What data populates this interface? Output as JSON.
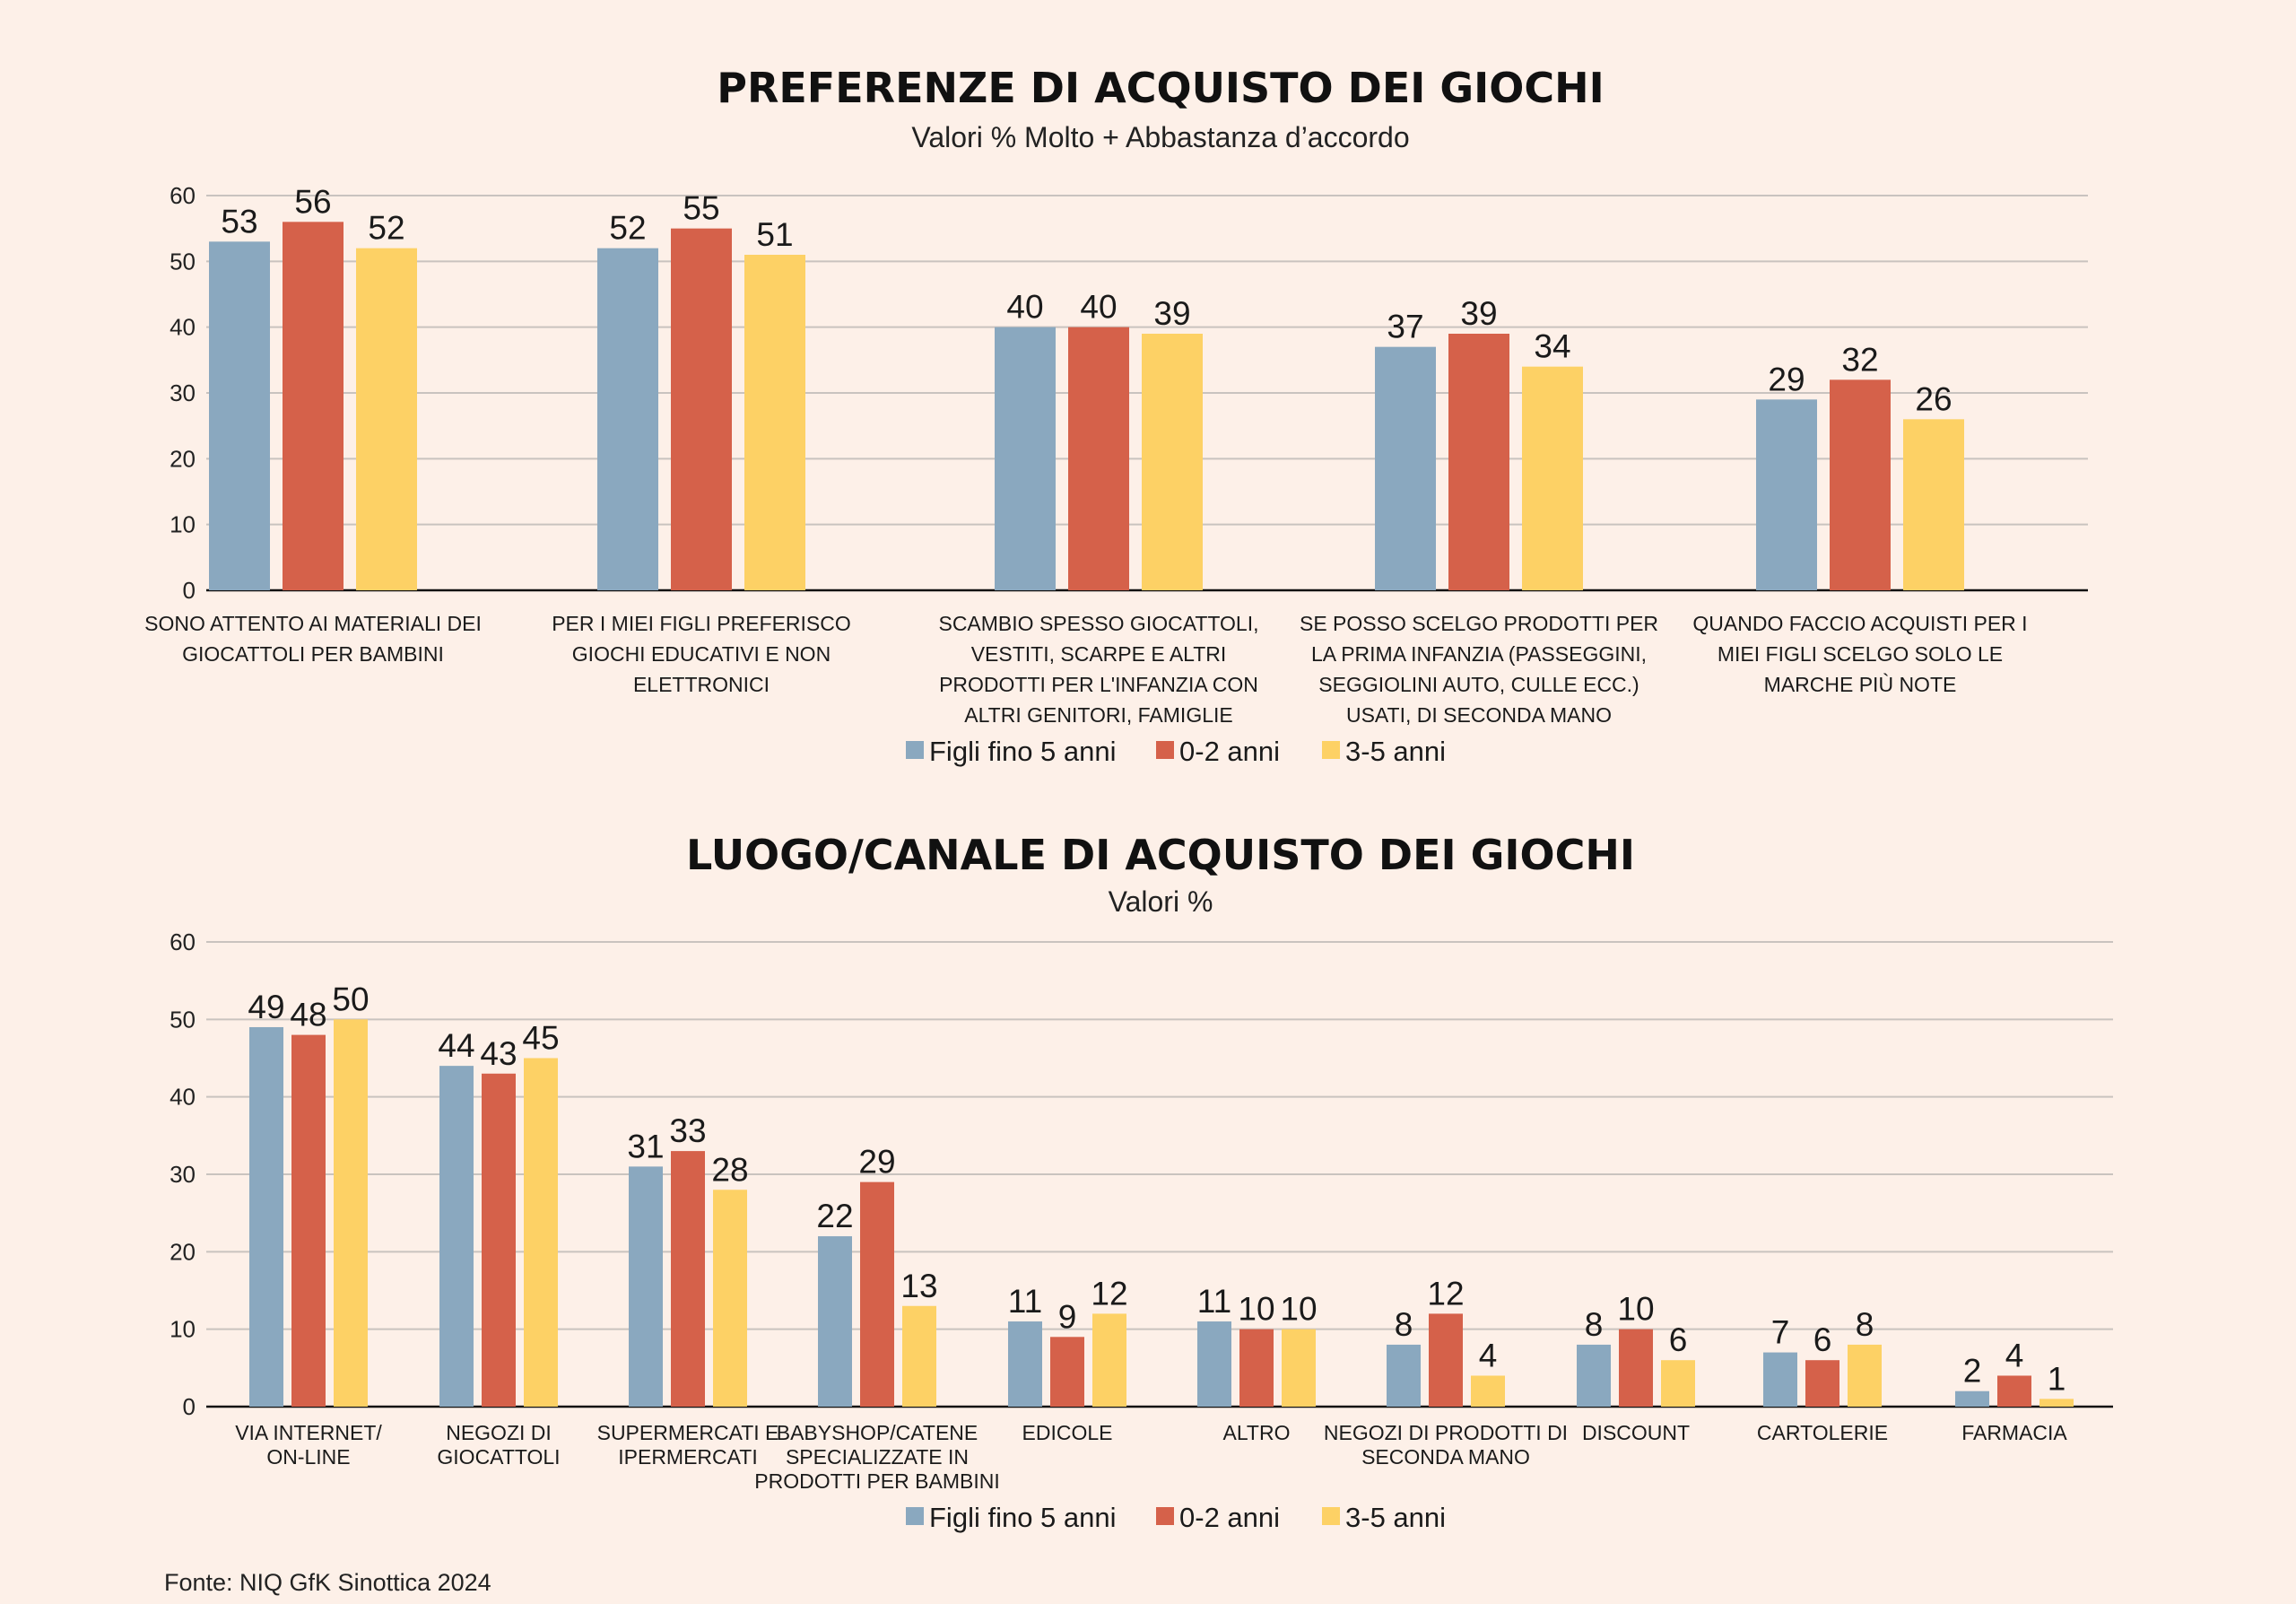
{
  "colors": {
    "background": "#fdf0e8",
    "figli": "#8aa8bf",
    "zero_two": "#d5614a",
    "three_five": "#fdd165",
    "grid": "#c9c3bf"
  },
  "legend": [
    "Figli fino 5 anni",
    "0-2 anni",
    "3-5 anni"
  ],
  "source": "Fonte: NIQ GfK Sinottica 2024",
  "chart_data": [
    {
      "type": "bar",
      "title": "PREFERENZE DI ACQUISTO DEI GIOCHI",
      "subtitle": "Valori % Molto + Abbastanza d’accordo",
      "ylim": [
        0,
        60
      ],
      "yticks": [
        0,
        10,
        20,
        30,
        40,
        50,
        60
      ],
      "grid": true,
      "legend_position": "bottom",
      "categories": [
        [
          "SONO ATTENTO AI MATERIALI DEI",
          "GIOCATTOLI PER BAMBINI"
        ],
        [
          "PER I MIEI FIGLI PREFERISCO",
          "GIOCHI EDUCATIVI E NON",
          "ELETTRONICI"
        ],
        [
          "SCAMBIO SPESSO GIOCATTOLI,",
          "VESTITI, SCARPE E ALTRI",
          "PRODOTTI PER L'INFANZIA CON",
          "ALTRI GENITORI, FAMIGLIE"
        ],
        [
          "SE POSSO SCELGO PRODOTTI PER",
          "LA PRIMA INFANZIA (PASSEGGINI,",
          "SEGGIOLINI AUTO, CULLE ECC.)",
          "USATI, DI SECONDA MANO"
        ],
        [
          "QUANDO FACCIO ACQUISTI PER I",
          "MIEI FIGLI SCELGO SOLO LE",
          "MARCHE PIÙ NOTE"
        ]
      ],
      "series": [
        {
          "name": "Figli fino 5 anni",
          "values": [
            53,
            52,
            40,
            37,
            29
          ]
        },
        {
          "name": "0-2 anni",
          "values": [
            56,
            55,
            40,
            39,
            32
          ]
        },
        {
          "name": "3-5 anni",
          "values": [
            52,
            51,
            39,
            34,
            26
          ]
        }
      ]
    },
    {
      "type": "bar",
      "title": "LUOGO/CANALE DI ACQUISTO DEI GIOCHI",
      "subtitle": "Valori %",
      "ylim": [
        0,
        60
      ],
      "yticks": [
        0,
        10,
        20,
        30,
        40,
        50,
        60
      ],
      "grid": true,
      "legend_position": "bottom",
      "categories": [
        [
          "VIA INTERNET/",
          "ON-LINE"
        ],
        [
          "NEGOZI DI",
          "GIOCATTOLI"
        ],
        [
          "SUPERMERCATI E",
          "IPERMERCATI"
        ],
        [
          "BABYSHOP/CATENE",
          "SPECIALIZZATE IN",
          "PRODOTTI PER BAMBINI"
        ],
        [
          "EDICOLE"
        ],
        [
          "ALTRO"
        ],
        [
          "NEGOZI DI PRODOTTI DI",
          "SECONDA MANO"
        ],
        [
          "DISCOUNT"
        ],
        [
          "CARTOLERIE"
        ],
        [
          "FARMACIA"
        ]
      ],
      "series": [
        {
          "name": "Figli fino 5 anni",
          "values": [
            49,
            44,
            31,
            22,
            11,
            11,
            8,
            8,
            7,
            2
          ]
        },
        {
          "name": "0-2 anni",
          "values": [
            48,
            43,
            33,
            29,
            9,
            10,
            12,
            10,
            6,
            4
          ]
        },
        {
          "name": "3-5 anni",
          "values": [
            50,
            45,
            28,
            13,
            12,
            10,
            4,
            6,
            8,
            1
          ]
        }
      ]
    }
  ]
}
